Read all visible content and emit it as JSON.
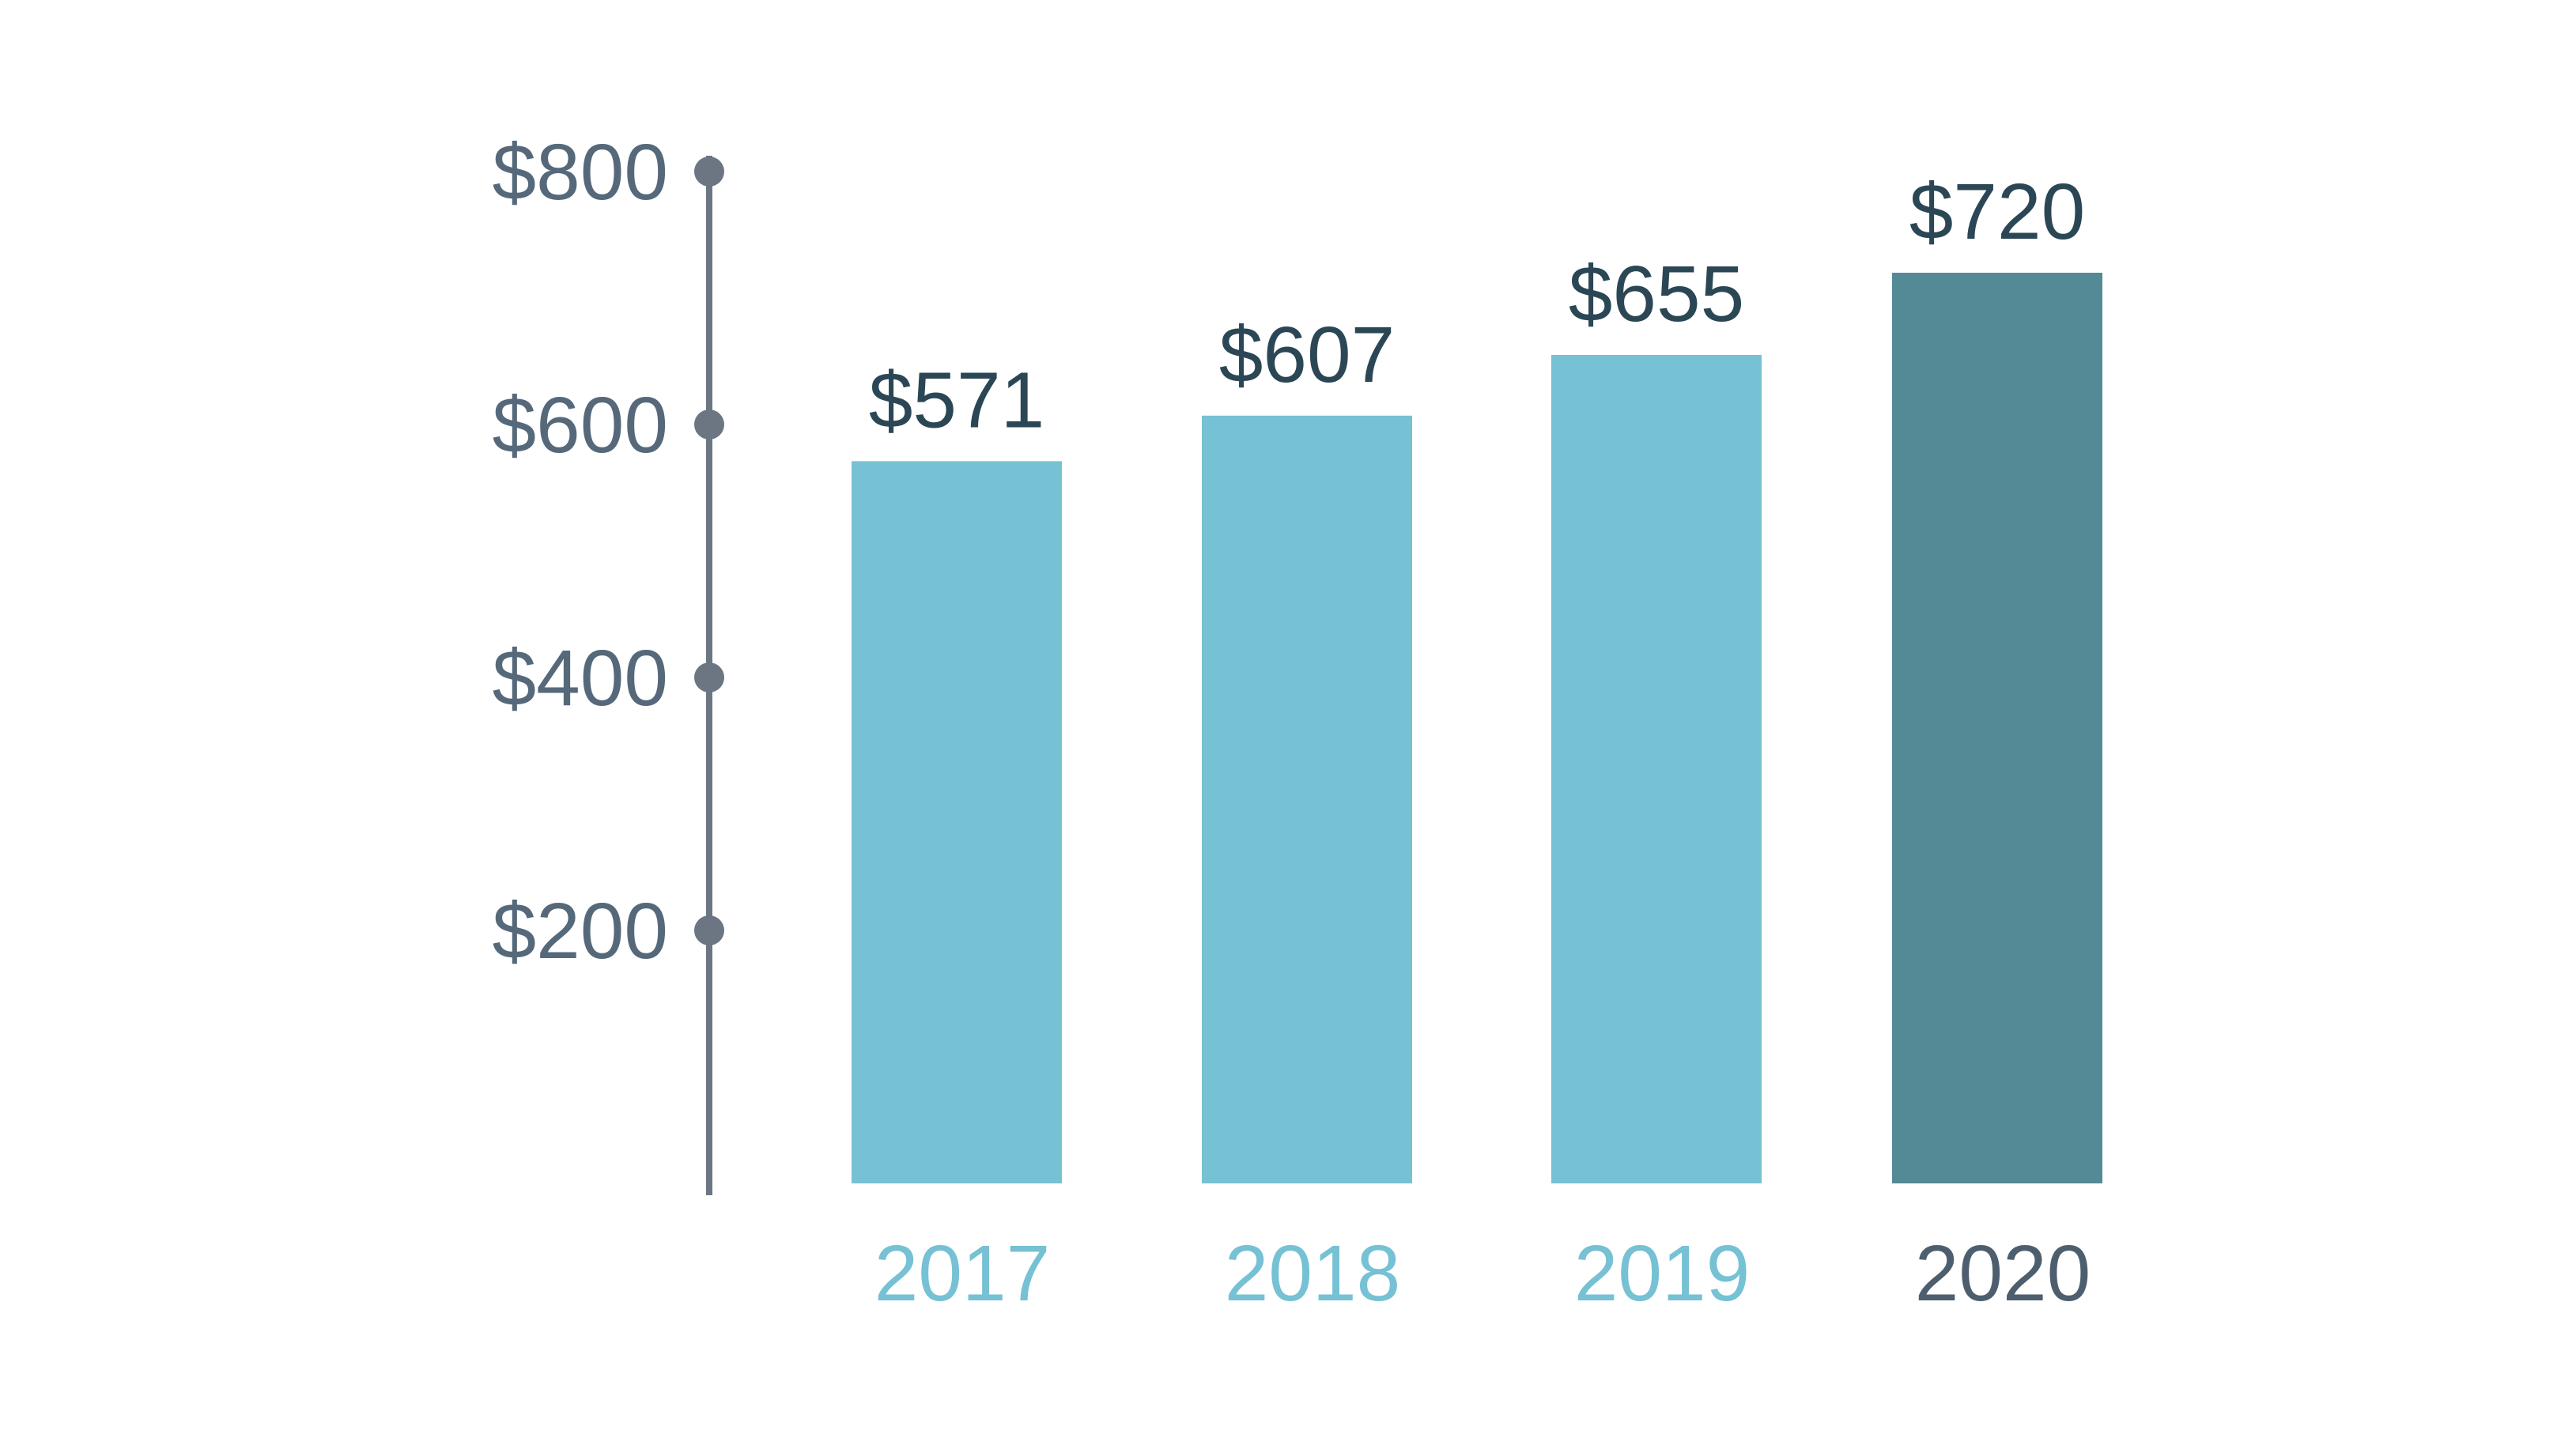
{
  "chart_data": {
    "type": "bar",
    "title": "",
    "xlabel": "",
    "ylabel": "",
    "categories": [
      "2017",
      "2018",
      "2019",
      "2020"
    ],
    "values": [
      571,
      607,
      655,
      720
    ],
    "value_labels": [
      "$571",
      "$607",
      "$655",
      "$720"
    ],
    "ylim": [
      0,
      800
    ],
    "y_ticks": [
      200,
      400,
      600,
      800
    ],
    "y_tick_labels": [
      "$200",
      "$400",
      "$600",
      "$800"
    ],
    "grid": false,
    "legend": "none",
    "highlight_index": 3,
    "colors": {
      "bar": "#76c1d4",
      "bar_highlight": "#538a96",
      "category_label": "#76c1d4",
      "category_label_highlight": "#4d5f6e",
      "value_label": "#2b4755",
      "axis": "#6b7682",
      "tick_label": "#56697a"
    }
  }
}
